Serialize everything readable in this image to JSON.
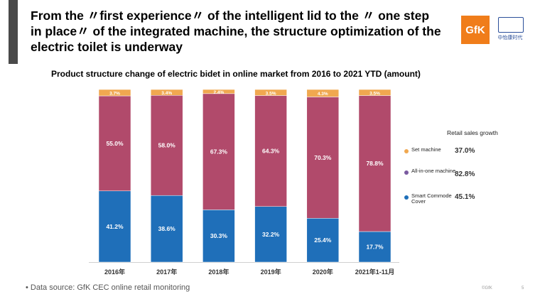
{
  "header": {
    "title": "From the 〃first experience〃 of the intelligent lid to the 〃 one step in place〃 of the integrated machine, the structure optimization of the electric toilet is underway",
    "logo_text": "GfK",
    "partner_logo_text": "中怡康时代"
  },
  "chart_data": {
    "type": "bar",
    "stacked": true,
    "percent": true,
    "title": "Product structure change of electric bidet in online market from 2016 to 2021 YTD (amount)",
    "categories": [
      "2016年",
      "2017年",
      "2018年",
      "2019年",
      "2020年",
      "2021年1-11月"
    ],
    "series": [
      {
        "name": "Smart Commode Cover",
        "color": "#1f6fb9",
        "values": [
          41.2,
          38.6,
          30.3,
          32.2,
          25.4,
          17.7
        ],
        "labels": [
          "41.2%",
          "38.6%",
          "30.3%",
          "32.2%",
          "25.4%",
          "17.7%"
        ]
      },
      {
        "name": "All-in-one machine",
        "color": "#b14a6b",
        "values": [
          55.0,
          58.0,
          67.3,
          64.3,
          70.3,
          78.8
        ],
        "labels": [
          "55.0%",
          "58.0%",
          "67.3%",
          "64.3%",
          "70.3%",
          "78.8%"
        ]
      },
      {
        "name": "Set machine",
        "color": "#f0a850",
        "values": [
          3.7,
          3.4,
          2.4,
          3.5,
          4.3,
          3.5
        ],
        "labels": [
          "3.7%",
          "3.4%",
          "2.4%",
          "3.5%",
          "4.3%",
          "3.5%"
        ]
      }
    ],
    "ylim": [
      0,
      100
    ],
    "legend_title": "Retail sales growth",
    "legend": [
      {
        "label": "Set machine",
        "growth": "37.0%",
        "color": "#f0a850"
      },
      {
        "label": "All-in-one machine",
        "growth": "82.8%",
        "color": "#7a5aa0"
      },
      {
        "label": "Smart Commode Cover",
        "growth": "45.1%",
        "color": "#1f6fb9"
      }
    ]
  },
  "footer": {
    "source": "• Data source: GfK CEC online retail monitoring",
    "company": "©GfK",
    "page": "5"
  }
}
